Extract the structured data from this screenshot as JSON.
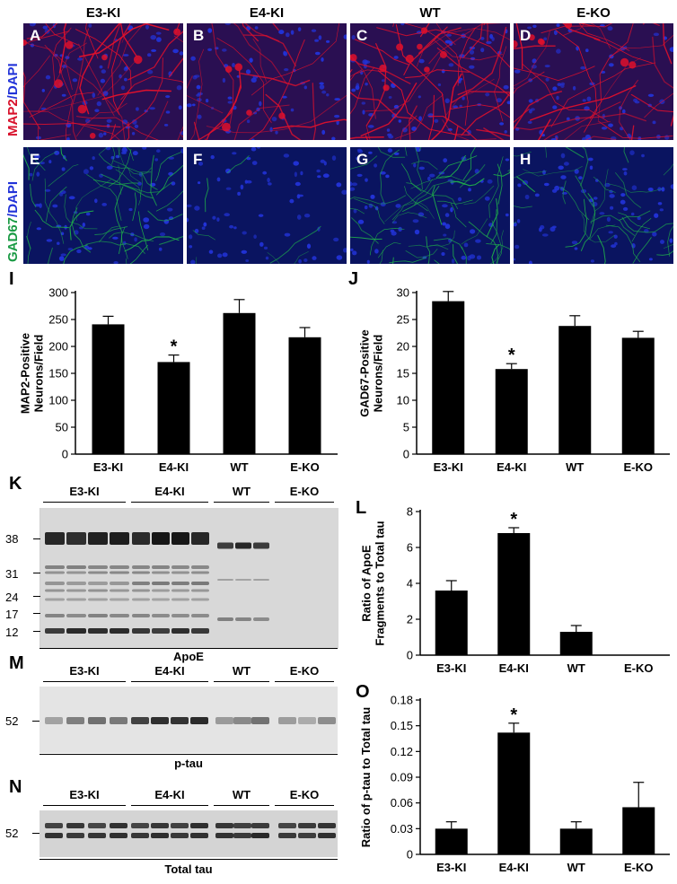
{
  "groups": [
    "E3-KI",
    "E4-KI",
    "WT",
    "E-KO"
  ],
  "panel_letters": {
    "A": "A",
    "B": "B",
    "C": "C",
    "D": "D",
    "E": "E",
    "F": "F",
    "G": "G",
    "H": "H",
    "I": "I",
    "J": "J",
    "K": "K",
    "L": "L",
    "M": "M",
    "N": "N",
    "O": "O"
  },
  "row_labels": {
    "map2": {
      "marker": "MAP2",
      "sep": "/",
      "dapi": "DAPI"
    },
    "gad67": {
      "marker": "GAD67",
      "sep": "/",
      "dapi": "DAPI"
    }
  },
  "colors": {
    "map2_red": "#e0102c",
    "gad67_green": "#1fae4a",
    "dapi_blue": "#2233d8",
    "bar": "#000000"
  },
  "blots": {
    "K": {
      "title": "ApoE",
      "markers": [
        "38",
        "31",
        "24",
        "17",
        "12"
      ]
    },
    "M": {
      "title": "p-tau",
      "markers": [
        "52"
      ]
    },
    "N": {
      "title": "Total tau",
      "markers": [
        "52"
      ]
    }
  },
  "significance_mark": "*",
  "chart_data": [
    {
      "id": "I",
      "type": "bar",
      "categories": [
        "E3-KI",
        "E4-KI",
        "WT",
        "E-KO"
      ],
      "values": [
        241,
        171,
        262,
        217
      ],
      "errors": [
        15,
        13,
        25,
        18
      ],
      "significant": [
        false,
        true,
        false,
        false
      ],
      "ylabel_lines": [
        "MAP2-Positive",
        "Neurons/Field"
      ],
      "ylim": [
        0,
        300
      ],
      "yticks": [
        "0",
        "50",
        "100",
        "150",
        "200",
        "250",
        "300"
      ],
      "grid": false
    },
    {
      "id": "J",
      "type": "bar",
      "categories": [
        "E3-KI",
        "E4-KI",
        "WT",
        "E-KO"
      ],
      "values": [
        28.4,
        15.8,
        23.8,
        21.6
      ],
      "errors": [
        1.8,
        1.0,
        1.9,
        1.2
      ],
      "significant": [
        false,
        true,
        false,
        false
      ],
      "ylabel_lines": [
        "GAD67-Positive",
        "Neurons/Field"
      ],
      "ylim": [
        0,
        30
      ],
      "yticks": [
        "0",
        "5",
        "10",
        "15",
        "20",
        "25",
        "30"
      ],
      "grid": false
    },
    {
      "id": "L",
      "type": "bar",
      "categories": [
        "E3-KI",
        "E4-KI",
        "WT",
        "E-KO"
      ],
      "values": [
        3.6,
        6.8,
        1.3,
        0
      ],
      "errors": [
        0.55,
        0.3,
        0.35,
        0
      ],
      "significant": [
        false,
        true,
        false,
        false
      ],
      "ylabel_lines": [
        "Ratio of ApoE",
        "Fragments to Total tau"
      ],
      "ylim": [
        0,
        8
      ],
      "yticks": [
        "0",
        "2",
        "4",
        "6",
        "8"
      ],
      "grid": false
    },
    {
      "id": "O",
      "type": "bar",
      "categories": [
        "E3-KI",
        "E4-KI",
        "WT",
        "E-KO"
      ],
      "values": [
        0.03,
        0.142,
        0.03,
        0.055
      ],
      "errors": [
        0.008,
        0.011,
        0.008,
        0.029
      ],
      "significant": [
        false,
        true,
        false,
        false
      ],
      "ylabel_lines": [
        "Ratio of p-tau to Total tau"
      ],
      "ylim": [
        0,
        0.18
      ],
      "yticks": [
        "0",
        "0.03",
        "0.06",
        "0.09",
        "0.12",
        "0.15",
        "0.18"
      ],
      "grid": false
    }
  ]
}
